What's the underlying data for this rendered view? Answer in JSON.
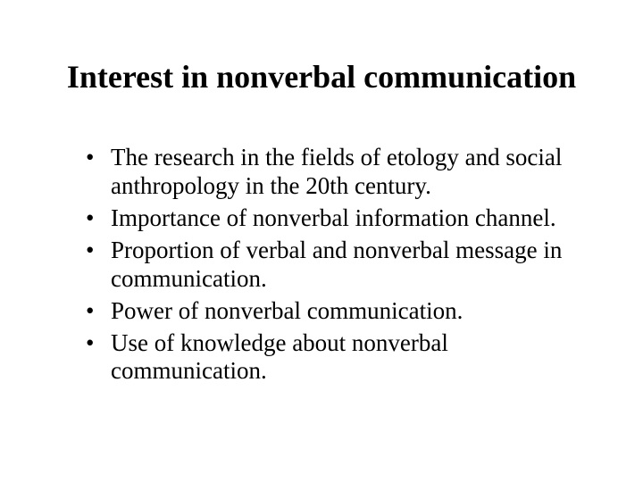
{
  "slide": {
    "title": "Interest in nonverbal communication",
    "title_fontsize": 36,
    "title_weight": "bold",
    "body_fontsize": 27,
    "text_color": "#000000",
    "background_color": "#ffffff",
    "font_family": "Times New Roman",
    "bullets": [
      "The research in the fields of etology and social anthropology in the 20th century.",
      "Importance of nonverbal information channel.",
      "Proportion of verbal and nonverbal message in communication.",
      "Power of nonverbal communication.",
      "Use of knowledge about nonverbal communication."
    ]
  }
}
